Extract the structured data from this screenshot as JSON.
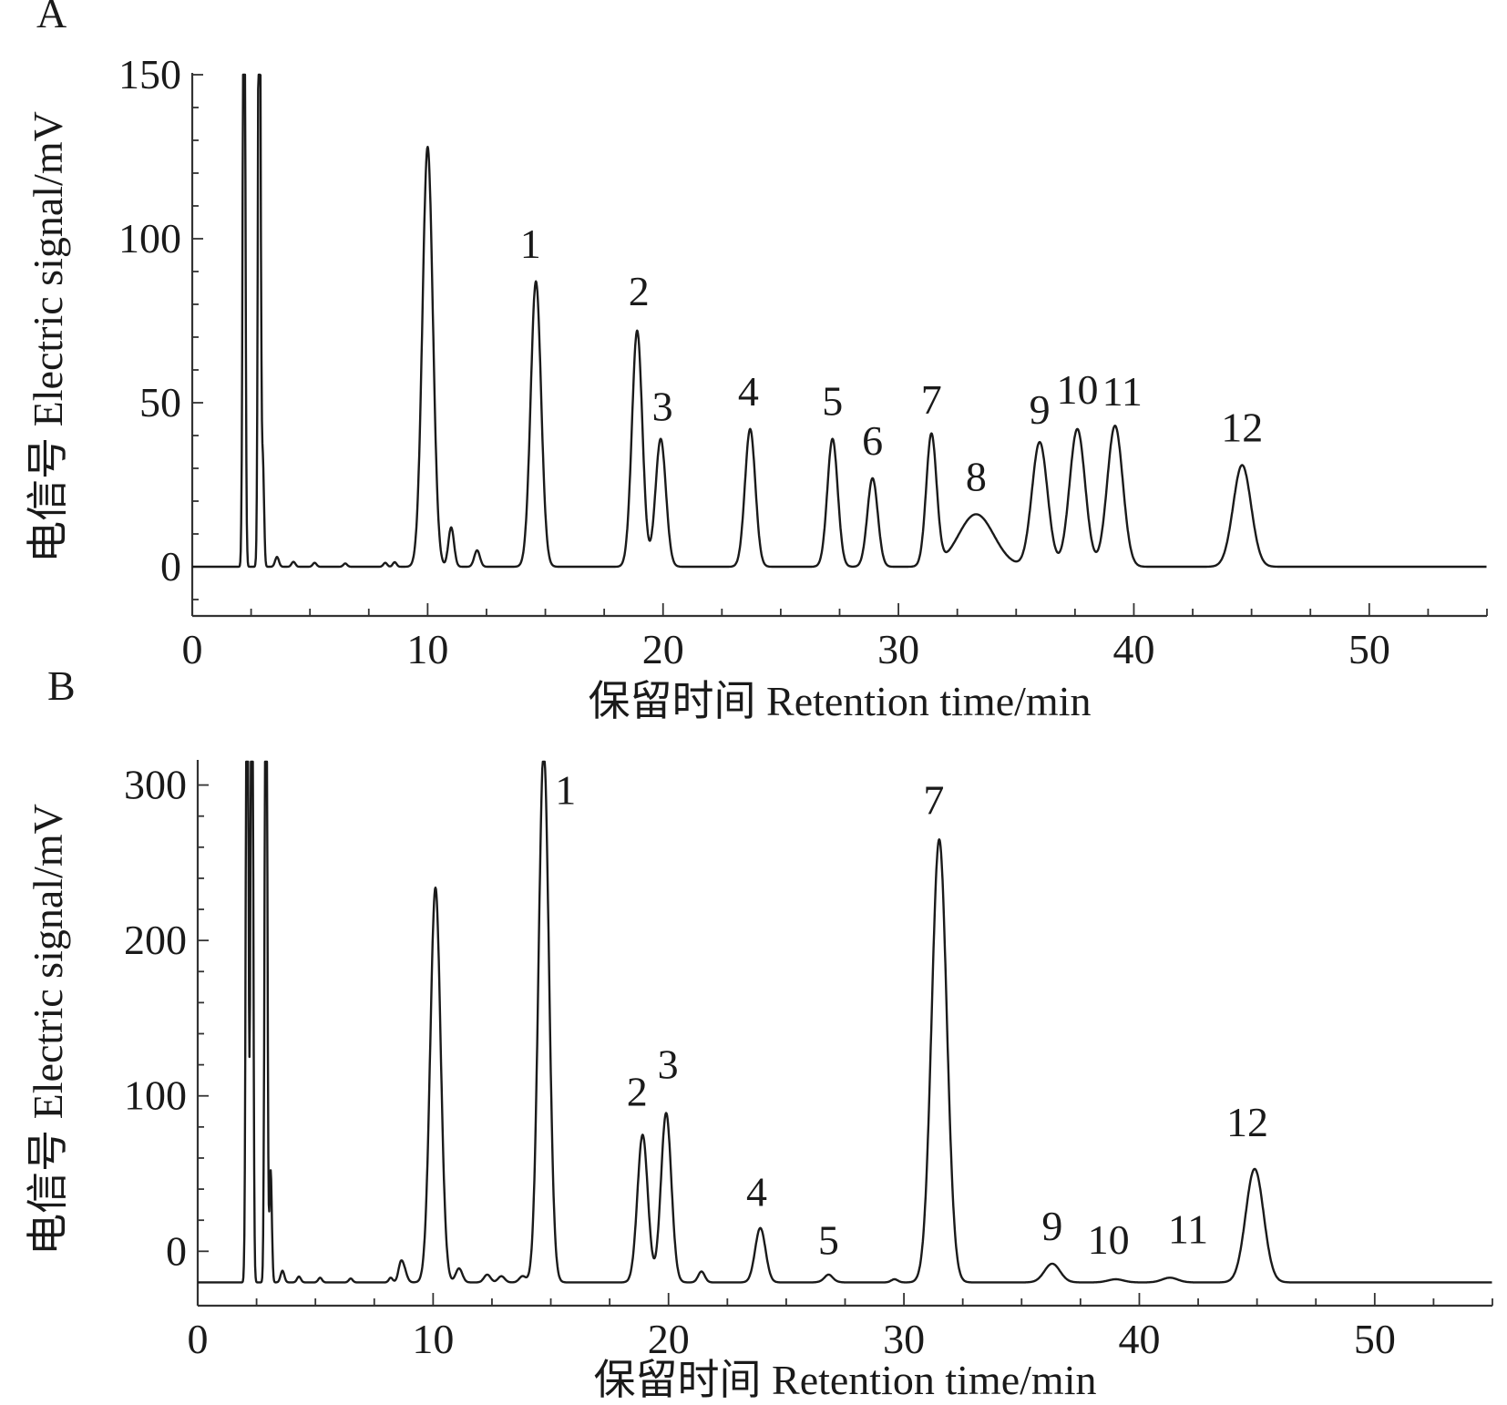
{
  "chart_data": [
    {
      "panel": "A",
      "type": "line",
      "xlabel": "保留时间 Retention time/min",
      "ylabel": "电信号 Electric signal/mV",
      "xlim": [
        0,
        55
      ],
      "ylim": [
        -15,
        150
      ],
      "xticks": [
        "0",
        "10",
        "20",
        "30",
        "40",
        "50"
      ],
      "yticks": [
        "0",
        "50",
        "100",
        "150"
      ],
      "solvent_peaks": [
        {
          "x": 2.2,
          "y": 150
        },
        {
          "x": 2.85,
          "y": 150
        },
        {
          "x": 3.0,
          "y": 20
        }
      ],
      "peaks": [
        {
          "label": "",
          "x": 10.0,
          "y": 128
        },
        {
          "label": "",
          "x": 11.0,
          "y": 12
        },
        {
          "label": "",
          "x": 12.1,
          "y": 5
        },
        {
          "label": "1",
          "x": 14.6,
          "y": 87
        },
        {
          "label": "2",
          "x": 18.9,
          "y": 72
        },
        {
          "label": "3",
          "x": 19.9,
          "y": 39
        },
        {
          "label": "4",
          "x": 23.7,
          "y": 42
        },
        {
          "label": "5",
          "x": 27.2,
          "y": 39
        },
        {
          "label": "6",
          "x": 28.9,
          "y": 27
        },
        {
          "label": "7",
          "x": 31.4,
          "y": 40
        },
        {
          "label": "8",
          "x": 33.3,
          "y": 16
        },
        {
          "label": "9",
          "x": 36.0,
          "y": 38
        },
        {
          "label": "10",
          "x": 37.6,
          "y": 42
        },
        {
          "label": "11",
          "x": 39.2,
          "y": 43
        },
        {
          "label": "12",
          "x": 44.6,
          "y": 31
        }
      ]
    },
    {
      "panel": "B",
      "type": "line",
      "xlabel": "保留时间 Retention time/min",
      "ylabel": "电信号 Electric signal/mV",
      "xlim": [
        0,
        55
      ],
      "ylim": [
        -35,
        315
      ],
      "xticks": [
        "0",
        "10",
        "20",
        "30",
        "40",
        "50"
      ],
      "yticks": [
        "0",
        "100",
        "200",
        "300"
      ],
      "baseline": -20,
      "solvent_peaks": [
        {
          "x": 2.1,
          "y": 315
        },
        {
          "x": 2.3,
          "y": 315
        },
        {
          "x": 2.9,
          "y": 315
        },
        {
          "x": 3.1,
          "y": 25
        }
      ],
      "peaks": [
        {
          "label": "",
          "x": 10.1,
          "y": 234
        },
        {
          "label": "1",
          "x": 14.7,
          "y": 323
        },
        {
          "label": "2",
          "x": 18.9,
          "y": 75
        },
        {
          "label": "3",
          "x": 19.9,
          "y": 89
        },
        {
          "label": "4",
          "x": 23.9,
          "y": 15
        },
        {
          "label": "5",
          "x": 26.8,
          "y": -17
        },
        {
          "label": "7",
          "x": 31.5,
          "y": 265
        },
        {
          "label": "9",
          "x": 36.3,
          "y": -8
        },
        {
          "label": "10",
          "x": 39.0,
          "y": -18
        },
        {
          "label": "11",
          "x": 41.3,
          "y": -17
        },
        {
          "label": "12",
          "x": 44.9,
          "y": 53
        }
      ]
    }
  ]
}
